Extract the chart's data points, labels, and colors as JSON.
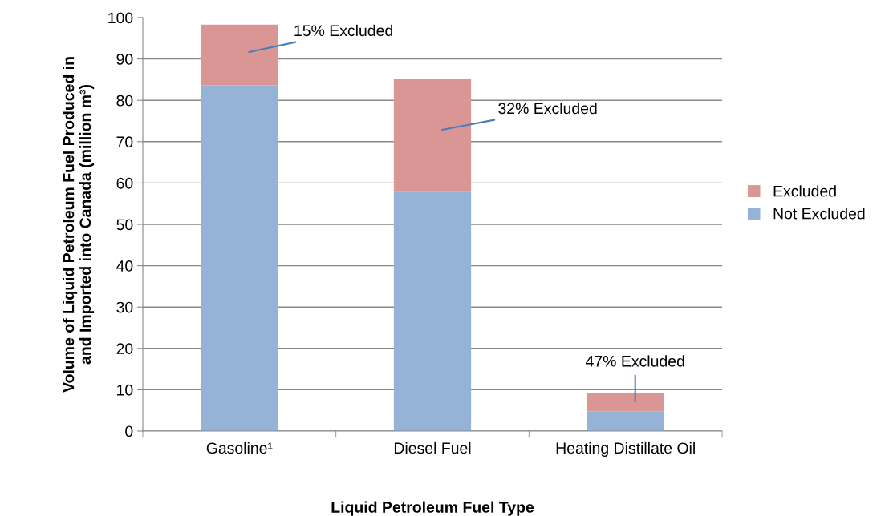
{
  "chart_data": {
    "type": "bar",
    "stacked": true,
    "categories": [
      "Gasoline¹",
      "Diesel Fuel",
      "Heating Distillate Oil"
    ],
    "series": [
      {
        "name": "Not Excluded",
        "color": "#95b3d7",
        "values": [
          83.6,
          57.8,
          4.8
        ]
      },
      {
        "name": "Excluded",
        "color": "#d99694",
        "values": [
          14.7,
          27.4,
          4.3
        ]
      }
    ],
    "xlabel": "Liquid Petroleum Fuel Type",
    "ylabel": "Volume of Liquid Petroleum Fuel Produced in\nand Imported into Canada (million m³)",
    "ylim": [
      0,
      100
    ],
    "yticks": [
      0,
      10,
      20,
      30,
      40,
      50,
      60,
      70,
      80,
      90,
      100
    ],
    "grid": "y",
    "legend": "right",
    "annotations": [
      "15% Excluded",
      "32% Excluded",
      "47% Excluded"
    ]
  }
}
